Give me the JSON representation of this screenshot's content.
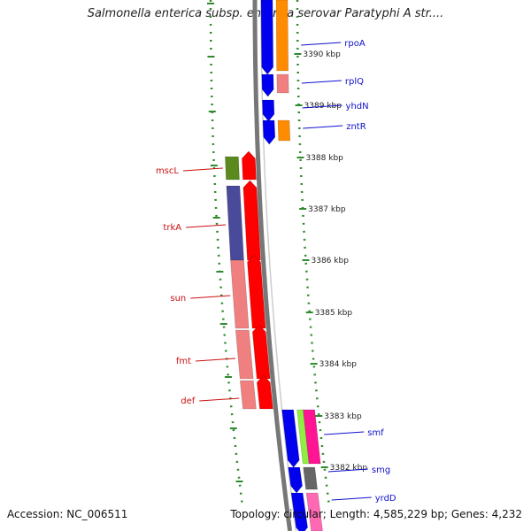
{
  "title": "Salmonella enterica subsp. enterica serovar Paratyphi A str....",
  "accession": "Accession: NC_006511",
  "summary": "Topology: circular; Length: 4,585,229 bp; Genes: 4,232",
  "colors": {
    "backbone": "#777777",
    "tick": "#2e8b2e",
    "label_right": "#1010cc",
    "label_left": "#cc1010"
  },
  "scale": {
    "unit": "kbp",
    "ticks": [
      "3390 kbp",
      "3389 kbp",
      "3388 kbp",
      "3387 kbp",
      "3386 kbp",
      "3385 kbp",
      "3384 kbp",
      "3383 kbp",
      "3382 kbp"
    ]
  },
  "genes_right": [
    {
      "name": "rpoA",
      "colors": [
        "#0000ee",
        "#ff8c00"
      ]
    },
    {
      "name": "rplQ",
      "colors": [
        "#0000ee",
        "#f08080"
      ]
    },
    {
      "name": "yhdN",
      "colors": [
        "#0000ee"
      ]
    },
    {
      "name": "zntR",
      "colors": [
        "#0000ee",
        "#ff8c00"
      ]
    },
    {
      "name": "smf",
      "colors": [
        "#0000ee",
        "#90ee40",
        "#ff1493"
      ]
    },
    {
      "name": "smg",
      "colors": [
        "#0000ee",
        "#666666"
      ]
    },
    {
      "name": "yrdD",
      "colors": [
        "#0000ee",
        "#ff69b4"
      ]
    }
  ],
  "genes_left": [
    {
      "name": "mscL",
      "colors": [
        "#5a8a1e",
        "#ff0000"
      ]
    },
    {
      "name": "trkA",
      "colors": [
        "#4a4a9a",
        "#ff0000"
      ]
    },
    {
      "name": "sun",
      "colors": [
        "#f08080",
        "#ff0000"
      ]
    },
    {
      "name": "fmt",
      "colors": [
        "#f08080",
        "#ff0000"
      ]
    },
    {
      "name": "def",
      "colors": [
        "#f08080",
        "#ff0000"
      ]
    }
  ]
}
